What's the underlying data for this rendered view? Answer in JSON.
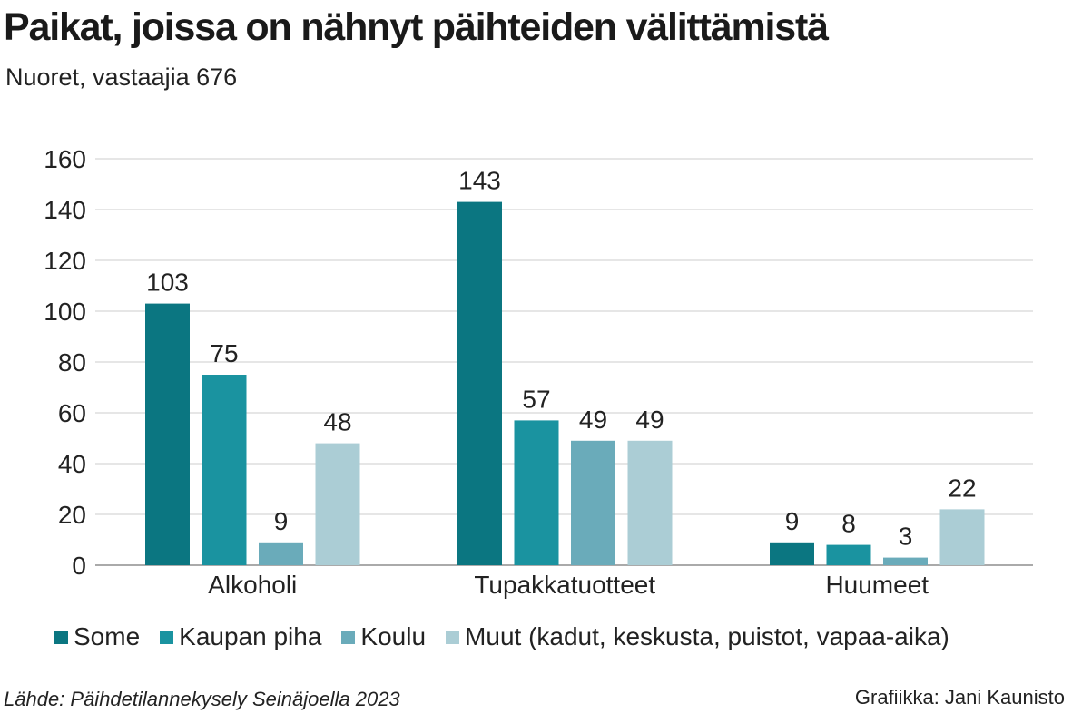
{
  "chart_data": {
    "type": "bar",
    "title": "Paikat, joissa on nähnyt päihteiden välittämistä",
    "subtitle": "Nuoret, vastaajia 676",
    "categories": [
      "Alkoholi",
      "Tupakkatuotteet",
      "Huumeet"
    ],
    "series": [
      {
        "name": "Some",
        "color": "#0b7681",
        "values": [
          103,
          143,
          9
        ]
      },
      {
        "name": "Kaupan piha",
        "color": "#1a93a0",
        "values": [
          75,
          57,
          8
        ]
      },
      {
        "name": "Koulu",
        "color": "#6aabba",
        "values": [
          9,
          49,
          3
        ]
      },
      {
        "name": "Muut (kadut, keskusta, puistot, vapaa-aika)",
        "color": "#abcdd5",
        "values": [
          48,
          49,
          22
        ]
      }
    ],
    "ylim": [
      0,
      160
    ],
    "yticks": [
      0,
      20,
      40,
      60,
      80,
      100,
      120,
      140,
      160
    ],
    "grid": true,
    "legend": "bottom",
    "xlabel": "",
    "ylabel": ""
  },
  "footer": {
    "source": "Lähde: Päihdetilannekysely Seinäjoella 2023",
    "credit": "Grafiikka: Jani Kaunisto"
  }
}
